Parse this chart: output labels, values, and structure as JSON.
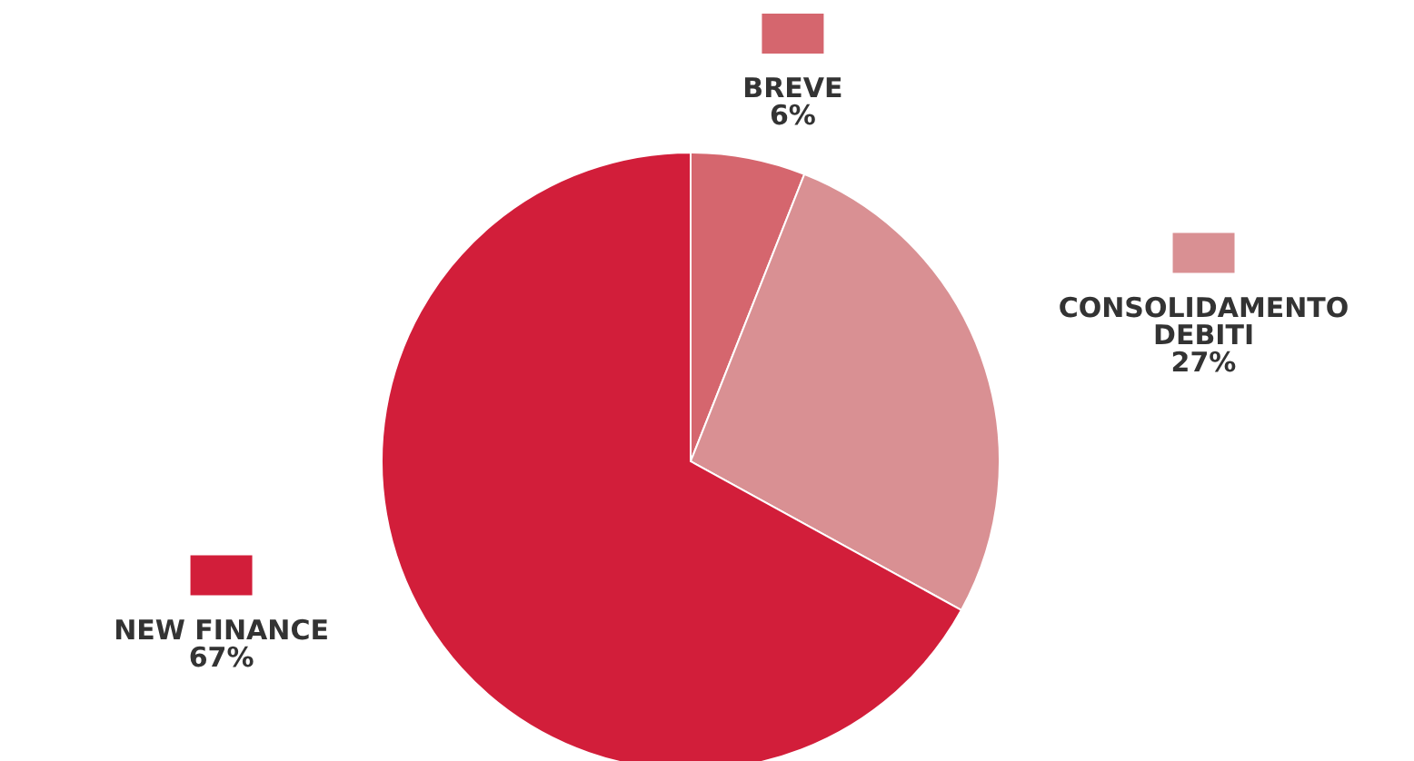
{
  "chart_data": {
    "type": "pie",
    "categories": [
      "BREVE",
      "CONSOLIDAMENTO DEBITI",
      "NEW FINANCE"
    ],
    "values": [
      6,
      27,
      67
    ],
    "colors": [
      "#d5666e",
      "#d99093",
      "#d21e3a"
    ],
    "value_labels": [
      "6%",
      "27%",
      "67%"
    ],
    "legend": "top"
  }
}
